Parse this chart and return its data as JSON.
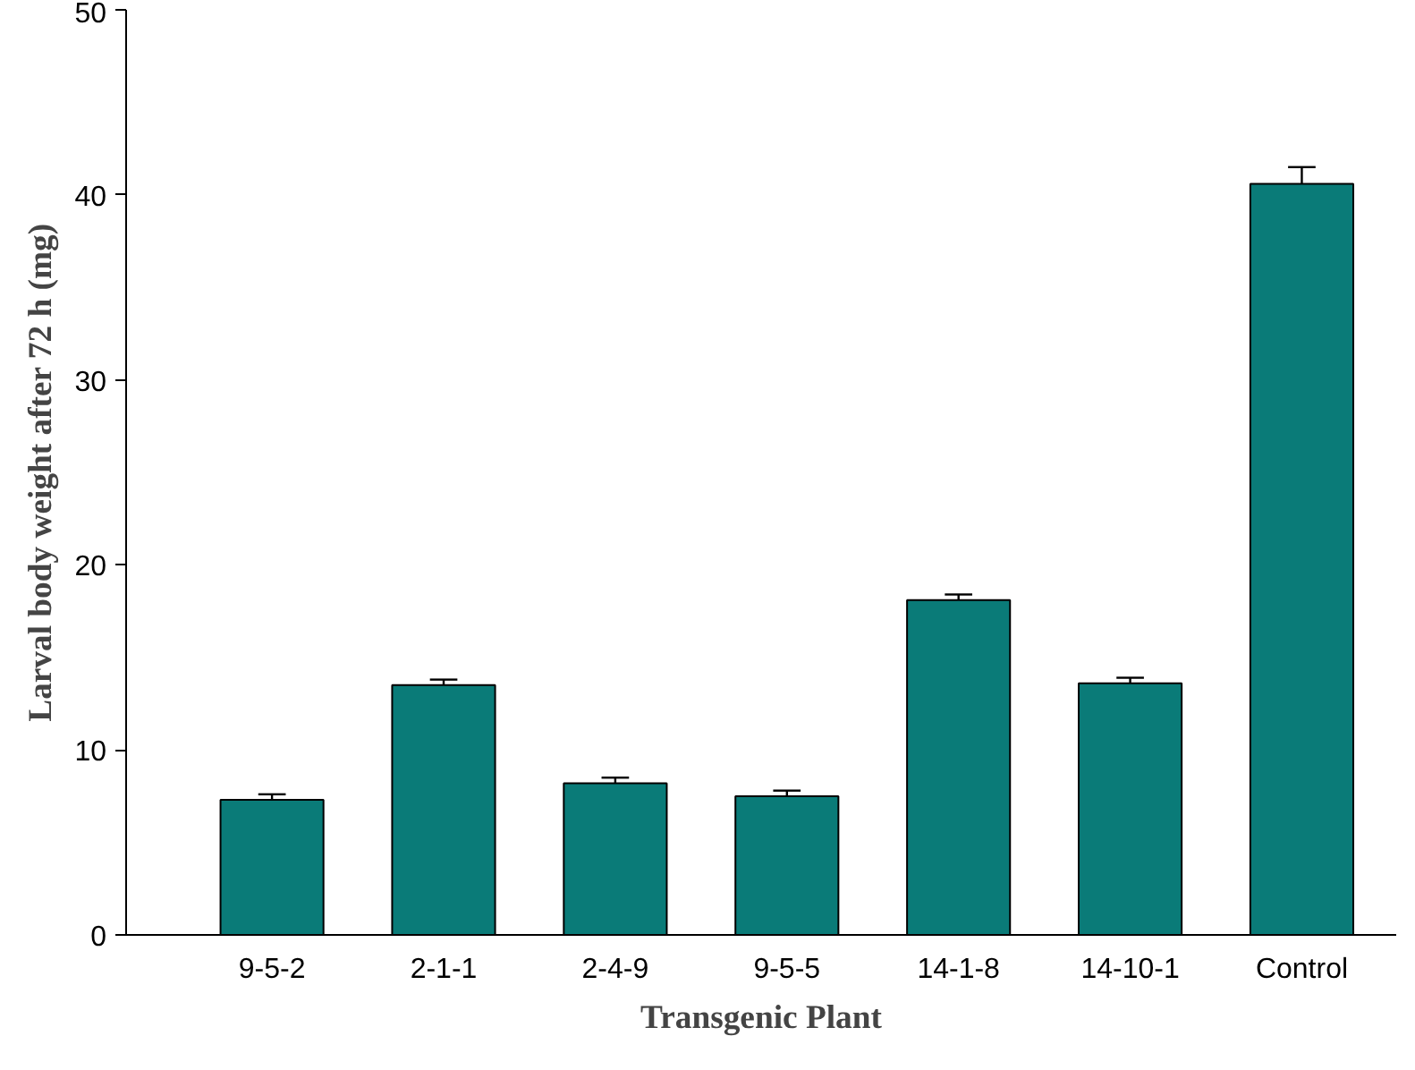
{
  "chart_data": {
    "type": "bar",
    "xlabel": "Transgenic Plant",
    "ylabel": "Larval body weight after 72 h (mg)",
    "categories": [
      "9-5-2",
      "2-1-1",
      "2-4-9",
      "9-5-5",
      "14-1-8",
      "14-10-1",
      "Control"
    ],
    "values": [
      7.3,
      13.5,
      8.2,
      7.5,
      18.1,
      13.6,
      40.6
    ],
    "errors": [
      0.3,
      0.3,
      0.3,
      0.3,
      0.3,
      0.3,
      0.9
    ],
    "color": "#0a7b78",
    "ylim": [
      0,
      50
    ],
    "yticks": [
      0,
      10,
      20,
      30,
      40,
      50
    ],
    "grid": false
  }
}
